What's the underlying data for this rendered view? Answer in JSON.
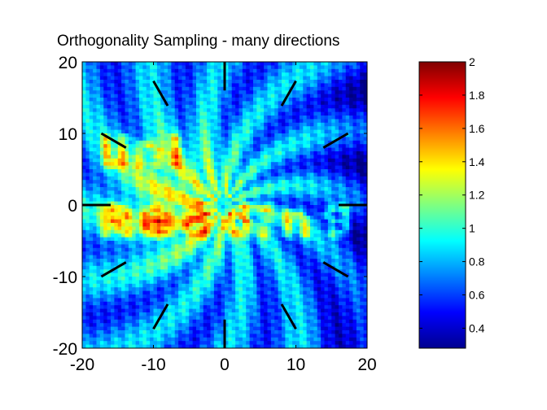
{
  "chart_data": {
    "type": "heatmap",
    "title": "Orthogonality Sampling - many directions",
    "xlabel": "",
    "ylabel": "",
    "xlim": [
      -20,
      20
    ],
    "ylim": [
      -20,
      20
    ],
    "x_ticks": [
      -20,
      -10,
      0,
      10,
      20
    ],
    "x_tick_labels": [
      "-20",
      "-10",
      "0",
      "10",
      "20"
    ],
    "y_ticks": [
      -20,
      -10,
      0,
      10,
      20
    ],
    "y_tick_labels": [
      "-20",
      "-10",
      "0",
      "10",
      "20"
    ],
    "grid": false,
    "colormap": "jet",
    "colorbar": {
      "placement": "right",
      "clim": [
        0.28,
        2.0
      ],
      "ticks": [
        0.4,
        0.6,
        0.8,
        1,
        1.2,
        1.4,
        1.6,
        1.8,
        2
      ],
      "tick_labels": [
        "0.4",
        "0.6",
        "0.8",
        "1",
        "1.2",
        "1.4",
        "1.6",
        "1.8",
        "2"
      ]
    },
    "background_value": 0.7,
    "reconstructed_text": {
      "line1": "Uni",
      "line2": "Reading",
      "line1_y": 7.5,
      "line2_y": -2.2,
      "peak_value": 1.75
    },
    "central_region": {
      "x_range": [
        -18,
        6
      ],
      "y_range": [
        -10,
        11
      ],
      "value": 1.25
    },
    "direction_markers": {
      "count": 12,
      "angles_deg": [
        0,
        30,
        60,
        90,
        120,
        150,
        180,
        210,
        240,
        270,
        300,
        330
      ],
      "inner_radius": 16,
      "outer_radius": 20,
      "color": "#000000"
    }
  }
}
